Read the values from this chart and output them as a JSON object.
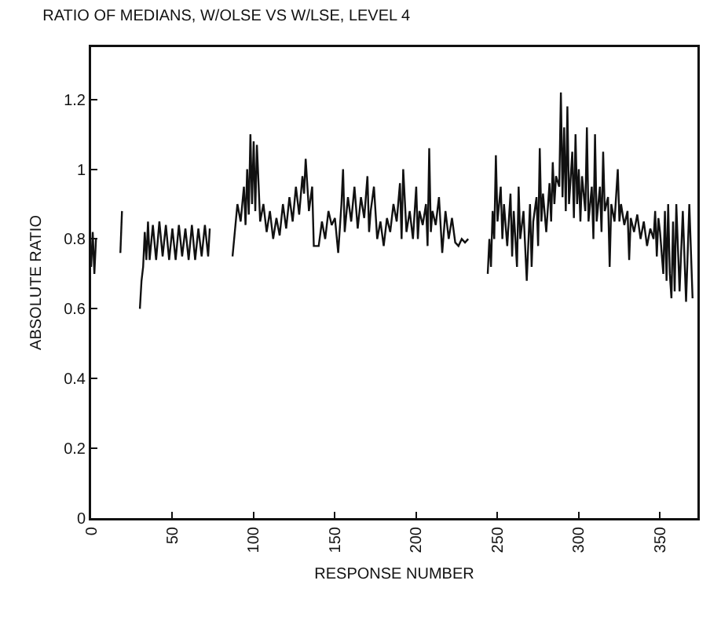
{
  "chart_data": {
    "type": "line",
    "title": "RATIO OF MEDIANS, W/OLSE VS W/LSE, LEVEL 4",
    "xlabel": "RESPONSE NUMBER",
    "ylabel": "ABSOLUTE RATIO",
    "color": "#111111",
    "grid": false,
    "xlim": [
      0,
      373
    ],
    "xticks": [
      0,
      50,
      100,
      150,
      200,
      250,
      300,
      350
    ],
    "ylim": [
      0,
      1.35
    ],
    "yticks": [
      0,
      0.2,
      0.4,
      0.6,
      0.8,
      1.0,
      1.2
    ],
    "x": [
      0,
      1,
      2,
      3,
      10,
      18,
      19,
      25,
      30,
      31,
      32,
      33,
      34,
      35,
      36,
      38,
      40,
      42,
      44,
      46,
      48,
      50,
      52,
      54,
      56,
      58,
      60,
      62,
      64,
      66,
      68,
      70,
      72,
      73,
      80,
      87,
      90,
      92,
      94,
      95,
      96,
      97,
      98,
      99,
      100,
      101,
      102,
      104,
      106,
      108,
      110,
      112,
      114,
      116,
      118,
      120,
      122,
      124,
      126,
      128,
      130,
      131,
      132,
      134,
      136,
      137,
      140,
      142,
      144,
      146,
      148,
      150,
      152,
      154,
      155,
      156,
      158,
      160,
      162,
      164,
      166,
      168,
      170,
      171,
      172,
      174,
      176,
      178,
      180,
      182,
      184,
      186,
      188,
      190,
      191,
      192,
      194,
      196,
      198,
      200,
      201,
      202,
      204,
      206,
      207,
      208,
      209,
      210,
      212,
      214,
      216,
      218,
      220,
      222,
      224,
      226,
      228,
      230,
      232,
      238,
      244,
      245,
      246,
      247,
      248,
      249,
      250,
      252,
      253,
      254,
      256,
      258,
      259,
      260,
      262,
      263,
      264,
      266,
      268,
      270,
      271,
      272,
      274,
      275,
      276,
      277,
      278,
      280,
      282,
      283,
      284,
      285,
      286,
      288,
      289,
      290,
      291,
      292,
      293,
      294,
      296,
      297,
      298,
      299,
      300,
      301,
      302,
      304,
      305,
      306,
      308,
      309,
      310,
      311,
      313,
      314,
      315,
      316,
      318,
      319,
      320,
      322,
      324,
      325,
      326,
      328,
      330,
      331,
      332,
      334,
      336,
      338,
      340,
      342,
      344,
      346,
      347,
      348,
      349,
      350,
      352,
      353,
      354,
      355,
      356,
      357,
      358,
      359,
      360,
      362,
      364,
      366,
      368,
      370
    ],
    "values": [
      0.72,
      0.82,
      0.7,
      0.8,
      null,
      0.76,
      0.88,
      null,
      0.6,
      0.68,
      0.72,
      0.82,
      0.74,
      0.85,
      0.74,
      0.84,
      0.74,
      0.85,
      0.75,
      0.84,
      0.74,
      0.83,
      0.74,
      0.84,
      0.75,
      0.83,
      0.74,
      0.84,
      0.74,
      0.83,
      0.75,
      0.84,
      0.75,
      0.83,
      null,
      0.75,
      0.9,
      0.85,
      0.95,
      0.84,
      1.0,
      0.87,
      1.1,
      0.9,
      1.08,
      0.88,
      1.07,
      0.85,
      0.9,
      0.82,
      0.88,
      0.8,
      0.86,
      0.81,
      0.9,
      0.83,
      0.92,
      0.85,
      0.95,
      0.87,
      0.98,
      0.93,
      1.03,
      0.88,
      0.95,
      0.78,
      0.78,
      0.85,
      0.8,
      0.88,
      0.84,
      0.86,
      0.76,
      0.9,
      1.0,
      0.82,
      0.92,
      0.85,
      0.95,
      0.83,
      0.92,
      0.86,
      0.98,
      0.82,
      0.88,
      0.95,
      0.8,
      0.85,
      0.78,
      0.86,
      0.82,
      0.9,
      0.85,
      0.96,
      0.8,
      1.0,
      0.82,
      0.88,
      0.8,
      0.95,
      0.8,
      0.88,
      0.84,
      0.9,
      0.78,
      1.06,
      0.82,
      0.88,
      0.84,
      0.92,
      0.76,
      0.88,
      0.8,
      0.86,
      0.79,
      0.78,
      0.8,
      0.79,
      0.8,
      null,
      0.7,
      0.8,
      0.72,
      0.88,
      0.8,
      1.04,
      0.85,
      0.95,
      0.8,
      0.9,
      0.78,
      0.93,
      0.75,
      0.88,
      0.72,
      0.95,
      0.8,
      0.88,
      0.68,
      0.9,
      0.72,
      0.85,
      0.92,
      0.78,
      1.06,
      0.85,
      0.93,
      0.82,
      0.96,
      0.85,
      1.02,
      0.9,
      0.98,
      0.95,
      1.22,
      0.92,
      1.12,
      0.88,
      1.18,
      0.9,
      1.05,
      0.86,
      1.1,
      0.9,
      1.0,
      0.85,
      0.98,
      0.88,
      1.12,
      0.85,
      0.95,
      0.8,
      1.1,
      0.85,
      0.95,
      0.82,
      1.05,
      0.88,
      0.92,
      0.72,
      0.9,
      0.85,
      1.0,
      0.85,
      0.9,
      0.84,
      0.88,
      0.74,
      0.86,
      0.82,
      0.87,
      0.8,
      0.85,
      0.78,
      0.83,
      0.8,
      0.88,
      0.75,
      0.86,
      0.82,
      0.7,
      0.88,
      0.68,
      0.9,
      0.7,
      0.63,
      0.85,
      0.65,
      0.9,
      0.65,
      0.88,
      0.62,
      0.9,
      0.63
    ]
  }
}
